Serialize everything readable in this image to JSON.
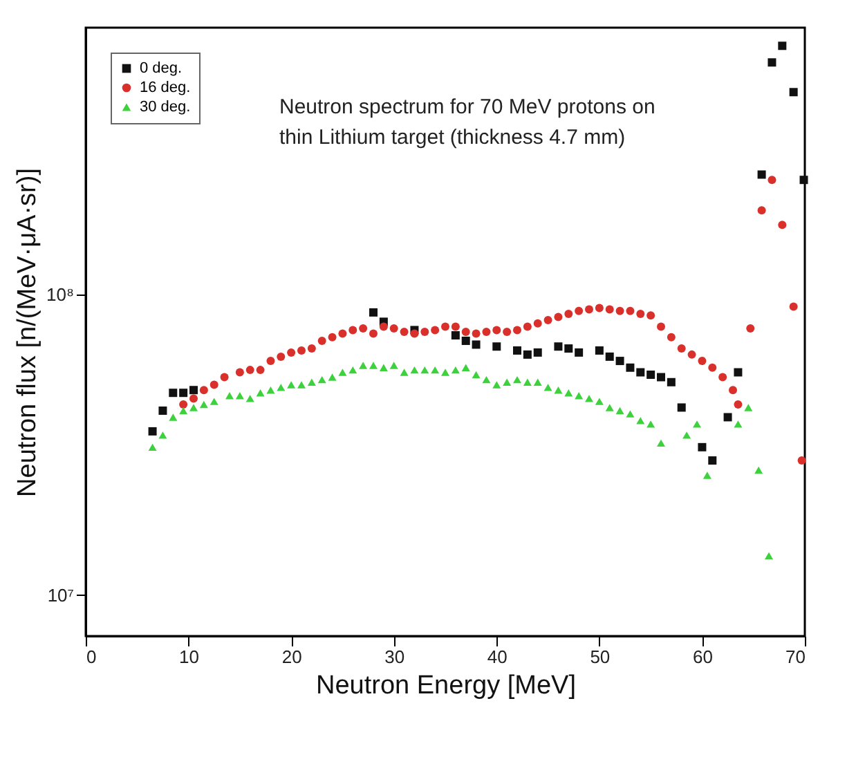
{
  "chart_data": {
    "type": "scatter",
    "xlabel": "Neutron Energy [MeV]",
    "ylabel": "Neutron flux [n/(MeV·μA·sr)]",
    "annotations": [
      "Neutron spectrum for 70 MeV protons on thin Lithium target (thickness 4.7 mm)"
    ],
    "xlim": [
      0,
      70
    ],
    "xticks": [
      0,
      10,
      20,
      30,
      40,
      50,
      60,
      70
    ],
    "ylim": [
      7300000,
      770000000
    ],
    "log": "y",
    "yticks": [
      {
        "value": 10000000,
        "label": "10⁷"
      },
      {
        "value": 100000000,
        "label": "10⁸"
      }
    ],
    "grid": false,
    "legend": "top left",
    "series": [
      {
        "name": "0 deg.",
        "color": "#111111",
        "marker": "square",
        "x": [
          6.5,
          7.5,
          8.5,
          9.5,
          10.5,
          28,
          29,
          32,
          36,
          37,
          38,
          40,
          42,
          43,
          44,
          46,
          47,
          48,
          50,
          51,
          52,
          53,
          54,
          55,
          56,
          57,
          58,
          60,
          61,
          62.5,
          63.5,
          65.8,
          66.8,
          67.8,
          68.9,
          69.9
        ],
        "values": [
          35000000.0,
          41000000.0,
          47000000.0,
          47000000.0,
          48000000.0,
          87000000.0,
          81000000.0,
          76000000.0,
          73000000.0,
          70000000.0,
          68000000.0,
          67000000.0,
          65000000.0,
          63000000.0,
          64000000.0,
          67000000.0,
          66000000.0,
          64000000.0,
          65000000.0,
          62000000.0,
          60000000.0,
          57000000.0,
          55000000.0,
          54000000.0,
          53000000.0,
          51000000.0,
          42000000.0,
          31000000.0,
          28000000.0,
          39000000.0,
          55000000.0,
          250000000.0,
          590000000.0,
          670000000.0,
          470000000.0,
          240000000.0
        ]
      },
      {
        "name": "16 deg.",
        "color": "#d9302c",
        "marker": "circle",
        "x": [
          9.5,
          10.5,
          11.5,
          12.5,
          13.5,
          15,
          16,
          17,
          18,
          19,
          20,
          21,
          22,
          23,
          24,
          25,
          26,
          27,
          28,
          29,
          30,
          31,
          32,
          33,
          34,
          35,
          36,
          37,
          38,
          39,
          40,
          41,
          42,
          43,
          44,
          45,
          46,
          47,
          48,
          49,
          50,
          51,
          52,
          53,
          54,
          55,
          56,
          57,
          58,
          59,
          60,
          61,
          62,
          63,
          63.5,
          64.7,
          65.8,
          66.8,
          67.8,
          68.9,
          69.7
        ],
        "values": [
          43000000.0,
          45000000.0,
          48000000.0,
          50000000.0,
          53000000.0,
          55000000.0,
          56000000.0,
          56000000.0,
          60000000.0,
          62000000.0,
          64000000.0,
          65000000.0,
          66000000.0,
          70000000.0,
          72000000.0,
          74000000.0,
          76000000.0,
          77000000.0,
          74000000.0,
          78000000.0,
          77000000.0,
          75000000.0,
          74000000.0,
          75000000.0,
          76000000.0,
          78000000.0,
          78000000.0,
          75000000.0,
          74000000.0,
          75000000.0,
          76000000.0,
          75000000.0,
          76000000.0,
          78000000.0,
          80000000.0,
          82000000.0,
          84000000.0,
          86000000.0,
          88000000.0,
          89000000.0,
          90000000.0,
          89000000.0,
          88000000.0,
          88000000.0,
          86000000.0,
          85000000.0,
          78000000.0,
          72000000.0,
          66000000.0,
          63000000.0,
          60000000.0,
          57000000.0,
          53000000.0,
          48000000.0,
          43000000.0,
          77000000.0,
          190000000.0,
          240000000.0,
          170000000.0,
          91000000.0,
          28000000.0
        ]
      },
      {
        "name": "30 deg.",
        "color": "#3ed13e",
        "marker": "triangle",
        "x": [
          6.5,
          7.5,
          8.5,
          9.5,
          10.5,
          11.5,
          12.5,
          14,
          15,
          16,
          17,
          18,
          19,
          20,
          21,
          22,
          23,
          24,
          25,
          26,
          27,
          28,
          29,
          30,
          31,
          32,
          33,
          34,
          35,
          36,
          37,
          38,
          39,
          40,
          41,
          42,
          43,
          44,
          45,
          46,
          47,
          48,
          49,
          50,
          51,
          52,
          53,
          54,
          55,
          56,
          58.5,
          59.5,
          60.5,
          63.5,
          64.5,
          65.5,
          66.5
        ],
        "values": [
          31000000.0,
          34000000.0,
          39000000.0,
          41000000.0,
          42000000.0,
          43000000.0,
          44000000.0,
          46000000.0,
          46000000.0,
          45000000.0,
          47000000.0,
          48000000.0,
          49000000.0,
          50000000.0,
          50000000.0,
          51000000.0,
          52000000.0,
          53000000.0,
          55000000.0,
          56000000.0,
          58000000.0,
          58000000.0,
          57000000.0,
          58000000.0,
          55000000.0,
          56000000.0,
          56000000.0,
          56000000.0,
          55000000.0,
          56000000.0,
          57000000.0,
          54000000.0,
          52000000.0,
          50000000.0,
          51000000.0,
          52000000.0,
          51000000.0,
          51000000.0,
          49000000.0,
          48000000.0,
          47000000.0,
          46000000.0,
          45000000.0,
          44000000.0,
          42000000.0,
          41000000.0,
          40000000.0,
          38000000.0,
          37000000.0,
          32000000.0,
          34000000.0,
          37000000.0,
          25000000.0,
          37000000.0,
          42000000.0,
          26000000.0,
          13500000.0
        ]
      }
    ]
  }
}
